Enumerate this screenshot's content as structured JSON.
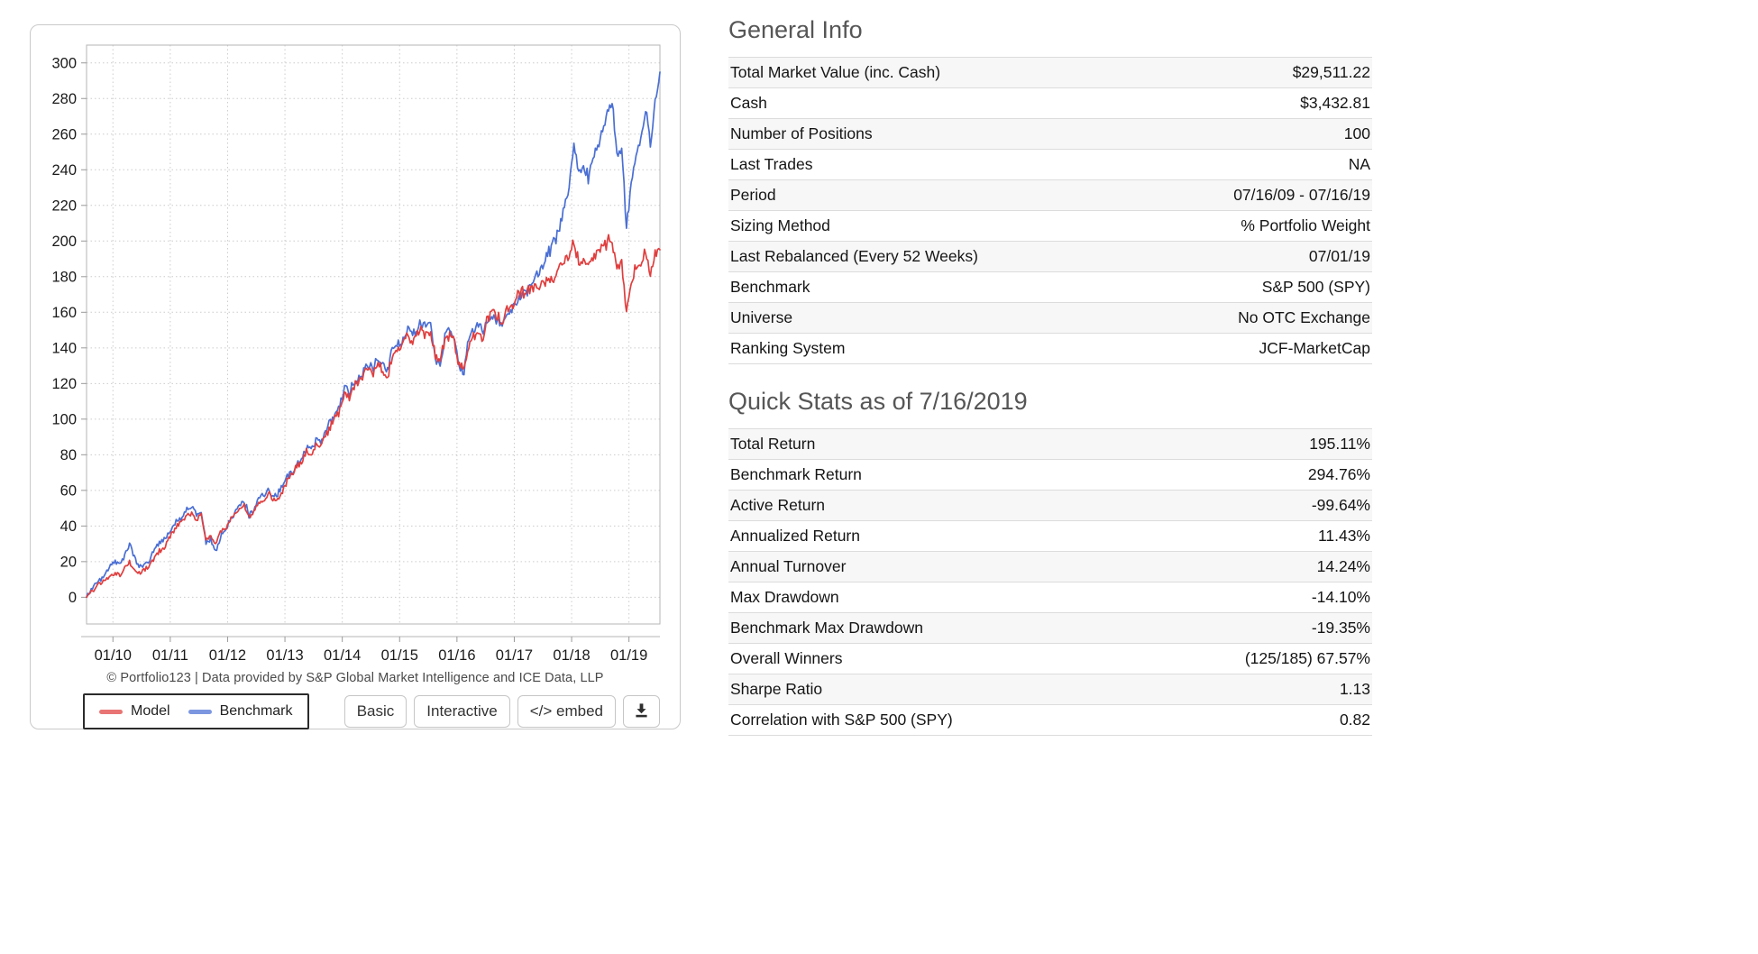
{
  "chart_panel": {
    "attribution": "© Portfolio123 | Data provided by S&P Global Market Intelligence and ICE Data, LLP",
    "buttons": {
      "basic_label": "Basic",
      "interactive_label": "Interactive",
      "embed_label": "</> embed"
    }
  },
  "chart_data": {
    "type": "line",
    "title": "",
    "xlabel": "",
    "ylabel": "",
    "x_unit": "decimal_year",
    "x_start": 2009.54,
    "x_step": 0.0833333,
    "xlim": [
      2009.54,
      2019.54
    ],
    "ylim": [
      -15,
      310
    ],
    "grid": true,
    "legend_position": "bottom-left",
    "y_ticks": [
      0,
      20,
      40,
      60,
      80,
      100,
      120,
      140,
      160,
      180,
      200,
      220,
      240,
      260,
      280,
      300
    ],
    "x_ticks": [
      {
        "value": 2010,
        "label": "01/10"
      },
      {
        "value": 2011,
        "label": "01/11"
      },
      {
        "value": 2012,
        "label": "01/12"
      },
      {
        "value": 2013,
        "label": "01/13"
      },
      {
        "value": 2014,
        "label": "01/14"
      },
      {
        "value": 2015,
        "label": "01/15"
      },
      {
        "value": 2016,
        "label": "01/16"
      },
      {
        "value": 2017,
        "label": "01/17"
      },
      {
        "value": 2018,
        "label": "01/18"
      },
      {
        "value": 2019,
        "label": "01/19"
      }
    ],
    "series": [
      {
        "name": "Model",
        "color": "#e03e3e",
        "values": [
          0,
          3,
          6,
          8,
          10,
          12,
          13,
          12,
          16,
          20,
          16,
          14,
          15,
          17,
          21,
          25,
          27,
          32,
          36,
          40,
          42,
          46,
          48,
          44,
          46,
          32,
          35,
          30,
          36,
          38,
          42,
          47,
          50,
          52,
          45,
          48,
          52,
          55,
          58,
          55,
          56,
          60,
          66,
          69,
          73,
          76,
          82,
          80,
          87,
          85,
          91,
          96,
          101,
          105,
          115,
          112,
          118,
          120,
          124,
          128,
          126,
          131,
          128,
          124,
          136,
          138,
          140,
          146,
          143,
          147,
          150,
          148,
          150,
          135,
          132,
          145,
          147,
          142,
          130,
          128,
          142,
          146,
          148,
          146,
          158,
          160,
          158,
          155,
          161,
          164,
          168,
          172,
          171,
          173,
          174,
          175,
          178,
          177,
          180,
          184,
          188,
          192,
          200,
          188,
          190,
          185,
          190,
          192,
          196,
          200,
          198,
          185,
          188,
          162,
          178,
          185,
          188,
          195,
          182,
          192,
          195.1
        ]
      },
      {
        "name": "Benchmark",
        "color": "#4a6fd4",
        "values": [
          0,
          5,
          8,
          10,
          14,
          17,
          20,
          18,
          24,
          30,
          22,
          17,
          18,
          20,
          26,
          30,
          32,
          36,
          39,
          44,
          44,
          50,
          51,
          46,
          48,
          30,
          33,
          25,
          34,
          37,
          43,
          48,
          52,
          54,
          46,
          49,
          54,
          57,
          60,
          57,
          58,
          62,
          68,
          70,
          74,
          78,
          84,
          82,
          89,
          87,
          93,
          99,
          104,
          108,
          118,
          115,
          121,
          123,
          127,
          131,
          129,
          134,
          131,
          127,
          140,
          141,
          143,
          150,
          147,
          151,
          154,
          152,
          155,
          133,
          130,
          148,
          150,
          146,
          129,
          127,
          146,
          150,
          152,
          150,
          155,
          157,
          155,
          152,
          158,
          162,
          166,
          170,
          170,
          174,
          181,
          184,
          190,
          194,
          200,
          208,
          218,
          228,
          258,
          238,
          244,
          235,
          248,
          252,
          262,
          272,
          276,
          248,
          252,
          207,
          232,
          248,
          258,
          275,
          252,
          280,
          294.8
        ]
      }
    ]
  },
  "general_info": {
    "title": "General Info",
    "rows": [
      {
        "label": "Total Market Value (inc. Cash)",
        "value": "$29,511.22",
        "label_style": null,
        "value_style": null
      },
      {
        "label": "Cash",
        "value": "$3,432.81",
        "label_style": null,
        "value_style": null
      },
      {
        "label": "Number of Positions",
        "value": "100",
        "label_style": "link",
        "value_style": "link"
      },
      {
        "label": "Last Trades",
        "value": "NA",
        "label_style": null,
        "value_style": null
      },
      {
        "label": "Period",
        "value": "07/16/09 - 07/16/19",
        "label_style": null,
        "value_style": null
      },
      {
        "label": "Sizing Method",
        "value": "% Portfolio Weight",
        "label_style": null,
        "value_style": null
      },
      {
        "label": "Last Rebalanced (Every 52 Weeks)",
        "value": "07/01/19",
        "label_style": null,
        "value_style": null
      },
      {
        "label": "Benchmark",
        "value": "S&P 500 (SPY)",
        "label_style": null,
        "value_style": null
      },
      {
        "label": "Universe",
        "value": "No OTC Exchange",
        "label_style": null,
        "value_style": null
      },
      {
        "label": "Ranking System",
        "value": "JCF-MarketCap",
        "label_style": null,
        "value_style": "link"
      }
    ]
  },
  "quick_stats": {
    "title": "Quick Stats as of 7/16/2019",
    "rows": [
      {
        "label": "Total Return",
        "value": "195.11%",
        "label_style": null,
        "value_style": null
      },
      {
        "label": "Benchmark Return",
        "value": "294.76%",
        "label_style": null,
        "value_style": null
      },
      {
        "label": "Active Return",
        "value": "-99.64%",
        "label_style": null,
        "value_style": "neg"
      },
      {
        "label": "Annualized Return",
        "value": "11.43%",
        "label_style": null,
        "value_style": null
      },
      {
        "label": "Annual Turnover",
        "value": "14.24%",
        "label_style": null,
        "value_style": null
      },
      {
        "label": "Max Drawdown",
        "value": "-14.10%",
        "label_style": null,
        "value_style": "neg"
      },
      {
        "label": "Benchmark Max Drawdown",
        "value": "-19.35%",
        "label_style": null,
        "value_style": "neg"
      },
      {
        "label": "Overall Winners",
        "value": "(125/185) 67.57%",
        "label_style": null,
        "value_style": null
      },
      {
        "label": "Sharpe Ratio",
        "value": "1.13",
        "label_style": null,
        "value_style": null
      },
      {
        "label": "Correlation with S&P 500 (SPY)",
        "value": "0.82",
        "label_style": null,
        "value_style": null
      }
    ]
  }
}
